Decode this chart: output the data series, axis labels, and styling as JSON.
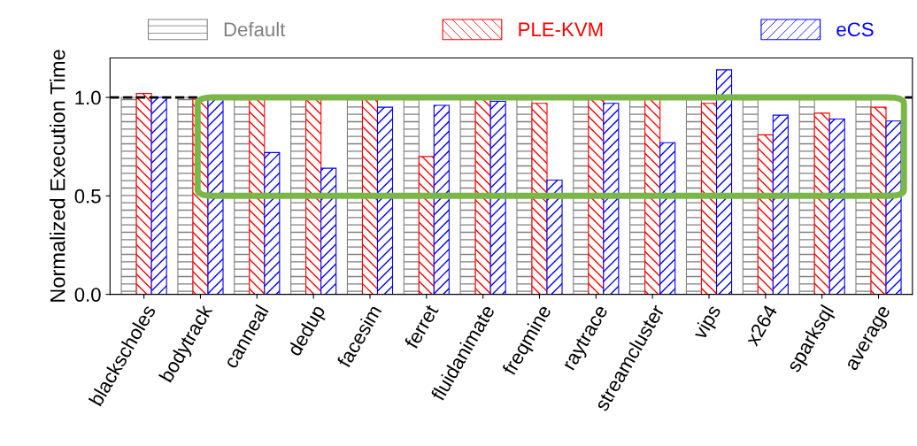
{
  "chart_data": {
    "type": "bar",
    "ylabel": "Normalized Execution Time",
    "categories": [
      "blackscholes",
      "bodytrack",
      "canneal",
      "dedup",
      "facesim",
      "ferret",
      "fluidanimate",
      "freqmine",
      "raytrace",
      "streamcluster",
      "vips",
      "x264",
      "sparksql",
      "average"
    ],
    "series": [
      {
        "name": "Default",
        "color": "#808080",
        "values": [
          1.0,
          1.0,
          1.0,
          1.0,
          1.0,
          1.0,
          1.0,
          1.0,
          1.0,
          1.0,
          1.0,
          1.0,
          1.0,
          1.0
        ]
      },
      {
        "name": "PLE-KVM",
        "color": "#ff0000",
        "values": [
          1.02,
          0.99,
          1.0,
          1.0,
          1.0,
          0.7,
          1.0,
          0.97,
          1.0,
          1.0,
          0.97,
          0.81,
          0.92,
          0.95
        ]
      },
      {
        "name": "eCS",
        "color": "#0000ff",
        "values": [
          1.0,
          1.0,
          0.72,
          0.64,
          0.95,
          0.96,
          0.98,
          0.58,
          0.97,
          0.77,
          1.14,
          0.91,
          0.89,
          0.88
        ]
      }
    ],
    "ylim": [
      0,
      1.2
    ],
    "yticks": [
      {
        "value": 0,
        "label": "0.0"
      },
      {
        "value": 0.5,
        "label": "0.5"
      },
      {
        "value": 1,
        "label": "1.0"
      }
    ],
    "ref_lines": [
      {
        "axis": "y",
        "value": 1.0,
        "color": "#000000",
        "line_style": "dashed"
      }
    ],
    "legend": "top",
    "grid": false
  }
}
